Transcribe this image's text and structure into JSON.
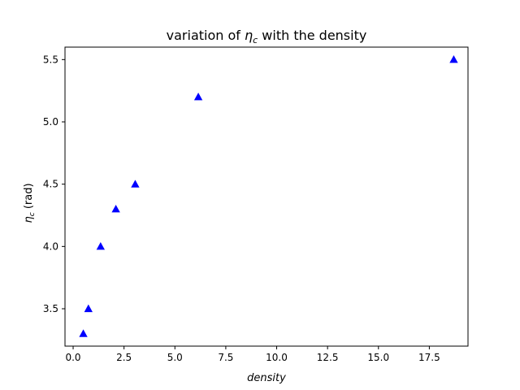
{
  "chart_data": {
    "type": "scatter",
    "title_prefix": "variation of ",
    "title_symbol": "η",
    "title_subscript": "c",
    "title_suffix": " with the density",
    "xlabel": "density",
    "ylabel_symbol": "η",
    "ylabel_subscript": "c",
    "ylabel_suffix": " (rad)",
    "xlim": [
      -0.4,
      19.4
    ],
    "ylim": [
      3.2,
      5.6
    ],
    "x_ticks": [
      0.0,
      2.5,
      5.0,
      7.5,
      10.0,
      12.5,
      15.0,
      17.5
    ],
    "x_tick_labels": [
      "0.0",
      "2.5",
      "5.0",
      "7.5",
      "10.0",
      "12.5",
      "15.0",
      "17.5"
    ],
    "y_ticks": [
      3.5,
      4.0,
      4.5,
      5.0,
      5.5
    ],
    "y_tick_labels": [
      "3.5",
      "4.0",
      "4.5",
      "5.0",
      "5.5"
    ],
    "marker": "triangle",
    "color": "#0000ff",
    "grid": false,
    "series": [
      {
        "x": [
          0.5,
          0.75,
          1.35,
          2.1,
          3.05,
          6.15,
          18.7
        ],
        "y": [
          3.3,
          3.5,
          4.0,
          4.3,
          4.5,
          5.2,
          5.5
        ]
      }
    ]
  }
}
